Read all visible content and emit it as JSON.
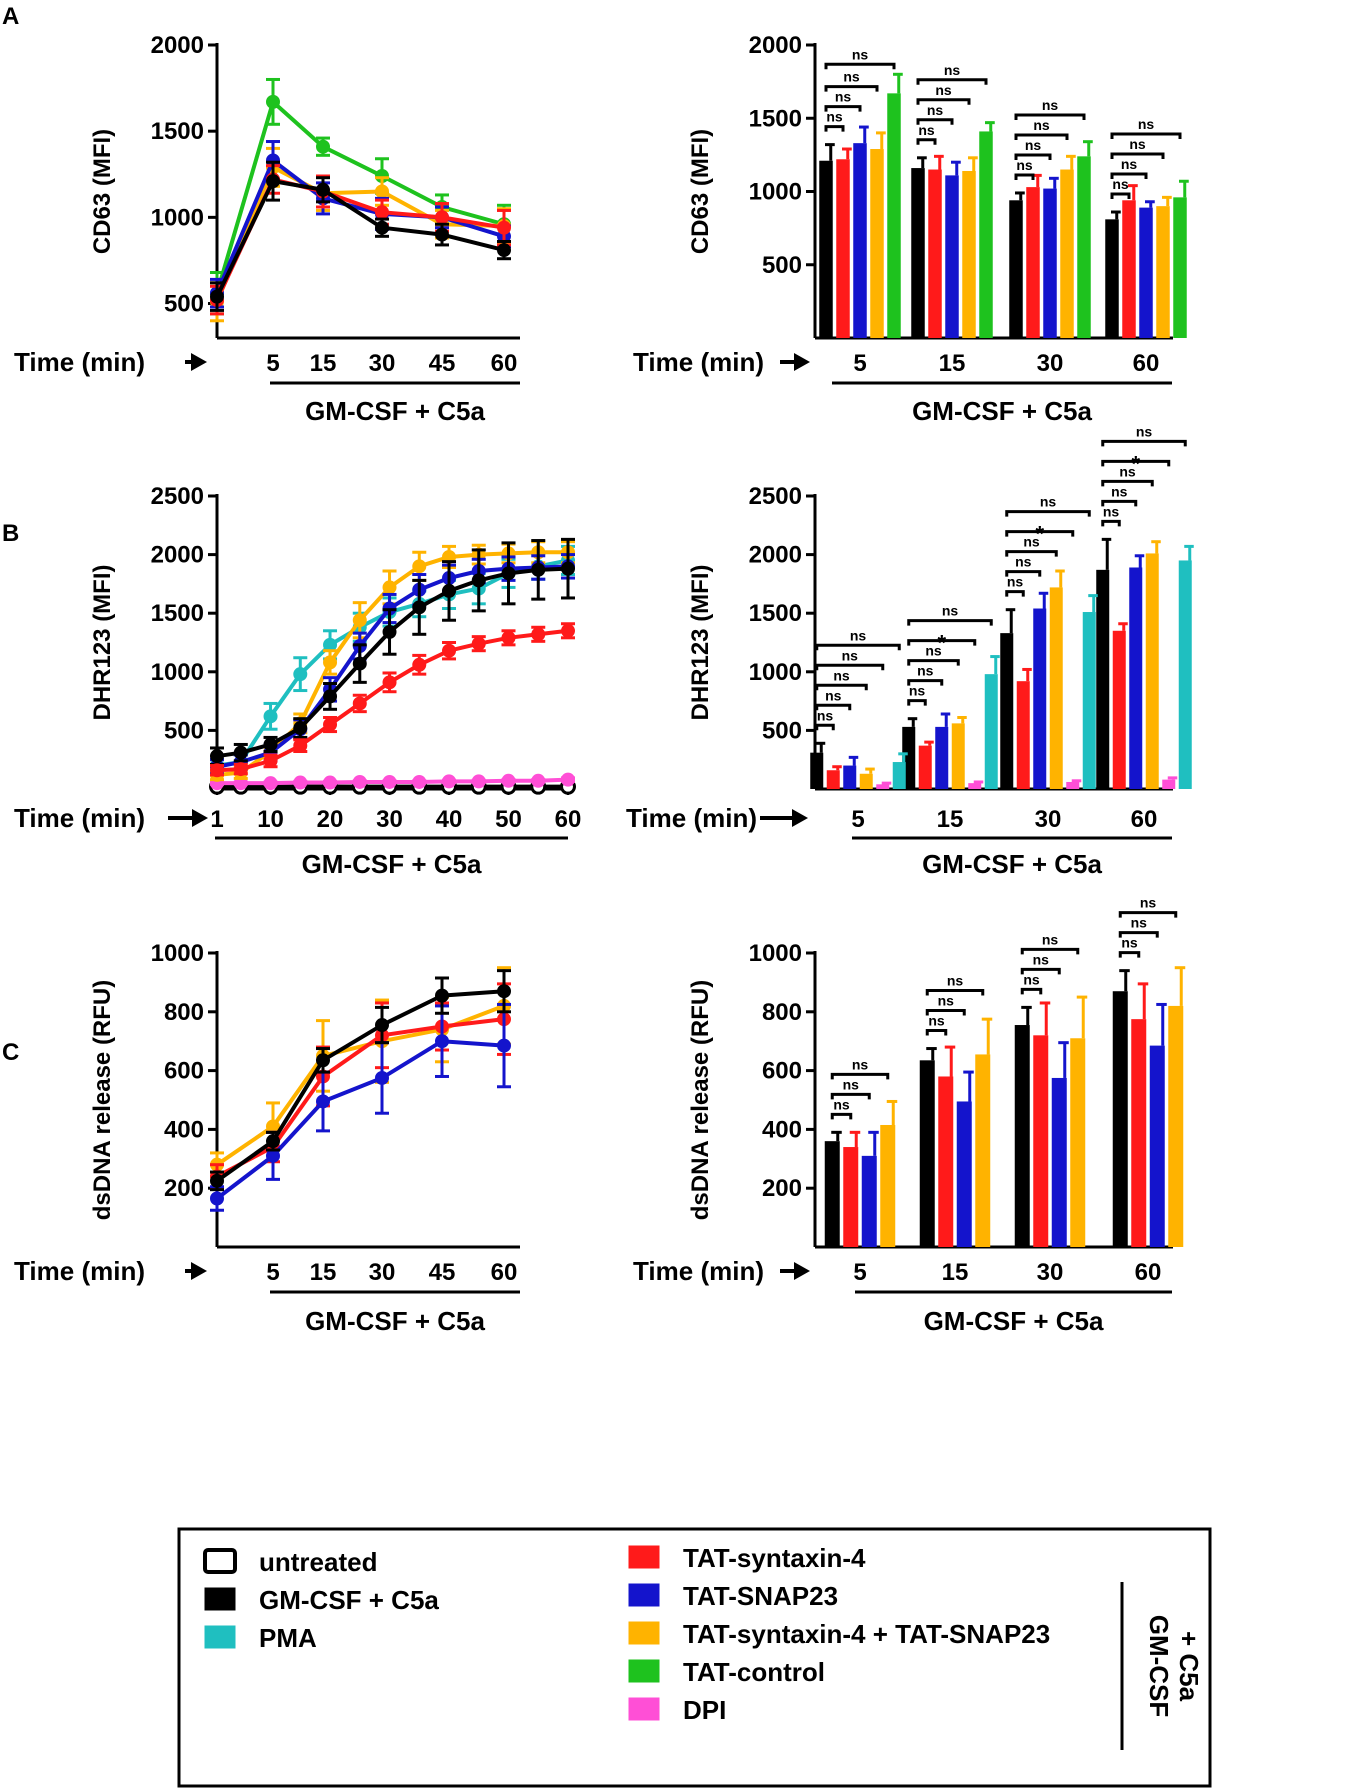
{
  "legend": {
    "items": [
      {
        "key": "untreated",
        "label": "untreated",
        "color": "#ffffff"
      },
      {
        "key": "gmcsf",
        "label": "GM-CSF + C5a",
        "color": "#000000"
      },
      {
        "key": "pma",
        "label": "PMA",
        "color": "#1fbfc0"
      },
      {
        "key": "stx4",
        "label": "TAT-syntaxin-4",
        "color": "#ff1a1a"
      },
      {
        "key": "snap23",
        "label": "TAT-SNAP23",
        "color": "#1414cc"
      },
      {
        "key": "both",
        "label": "TAT-syntaxin-4 + TAT-SNAP23",
        "color": "#ffb300"
      },
      {
        "key": "control",
        "label": "TAT-control",
        "color": "#1ec21e"
      },
      {
        "key": "dpi",
        "label": "DPI",
        "color": "#ff4fd6"
      }
    ],
    "group_label_line1": "GM-CSF",
    "group_label_line2": "+ C5a"
  },
  "chart_data": [
    {
      "id": "A-line",
      "panel": "A",
      "type": "line",
      "ylabel": "CD63 (MFI)",
      "ylim": [
        300,
        2000
      ],
      "yticks": [
        500,
        1000,
        1500,
        2000
      ],
      "time_label": "Time (min)",
      "treatment_label": "GM-CSF + C5a",
      "x_ticks": [
        "5",
        "15",
        "30",
        "45",
        "60"
      ],
      "series": [
        {
          "key": "control",
          "values": [
            560,
            1670,
            1410,
            1240,
            1060,
            960
          ],
          "err": [
            120,
            130,
            50,
            100,
            70,
            110
          ]
        },
        {
          "key": "both",
          "values": [
            510,
            1290,
            1140,
            1150,
            960,
            950
          ],
          "err": [
            110,
            110,
            100,
            80,
            80,
            100
          ]
        },
        {
          "key": "snap23",
          "values": [
            560,
            1330,
            1110,
            1020,
            1000,
            890
          ],
          "err": [
            80,
            110,
            90,
            90,
            60,
            60
          ]
        },
        {
          "key": "stx4",
          "values": [
            520,
            1220,
            1150,
            1030,
            1000,
            940
          ],
          "err": [
            80,
            80,
            90,
            70,
            80,
            100
          ]
        },
        {
          "key": "gmcsf",
          "values": [
            540,
            1210,
            1160,
            940,
            900,
            810
          ],
          "err": [
            80,
            110,
            70,
            50,
            60,
            50
          ]
        }
      ]
    },
    {
      "id": "A-bar",
      "panel": "A",
      "type": "bar",
      "ylabel": "CD63 (MFI)",
      "ylim": [
        0,
        2000
      ],
      "yticks": [
        500,
        1000,
        1500,
        2000
      ],
      "time_label": "Time (min)",
      "treatment_label": "GM-CSF + C5a",
      "categories": [
        "5",
        "15",
        "30",
        "60"
      ],
      "series": [
        {
          "key": "gmcsf",
          "values": [
            1210,
            1160,
            940,
            810
          ],
          "err": [
            110,
            70,
            50,
            50
          ]
        },
        {
          "key": "stx4",
          "values": [
            1220,
            1150,
            1030,
            940
          ],
          "err": [
            70,
            90,
            80,
            100
          ]
        },
        {
          "key": "snap23",
          "values": [
            1330,
            1110,
            1020,
            890
          ],
          "err": [
            110,
            90,
            70,
            40
          ]
        },
        {
          "key": "both",
          "values": [
            1290,
            1140,
            1150,
            900
          ],
          "err": [
            110,
            90,
            90,
            60
          ]
        },
        {
          "key": "control",
          "values": [
            1670,
            1410,
            1240,
            960
          ],
          "err": [
            130,
            60,
            100,
            110
          ]
        }
      ],
      "brackets": [
        {
          "cat": 0,
          "to": 1,
          "level": 0,
          "label": "ns"
        },
        {
          "cat": 0,
          "to": 2,
          "level": 1,
          "label": "ns"
        },
        {
          "cat": 0,
          "to": 3,
          "level": 2,
          "label": "ns"
        },
        {
          "cat": 0,
          "to": 4,
          "level": 3,
          "label": "ns"
        },
        {
          "cat": 1,
          "to": 1,
          "level": 0,
          "label": "ns"
        },
        {
          "cat": 1,
          "to": 2,
          "level": 1,
          "label": "ns"
        },
        {
          "cat": 1,
          "to": 3,
          "level": 2,
          "label": "ns"
        },
        {
          "cat": 1,
          "to": 4,
          "level": 3,
          "label": "ns"
        },
        {
          "cat": 2,
          "to": 1,
          "level": 0,
          "label": "ns"
        },
        {
          "cat": 2,
          "to": 2,
          "level": 1,
          "label": "ns"
        },
        {
          "cat": 2,
          "to": 3,
          "level": 2,
          "label": "ns"
        },
        {
          "cat": 2,
          "to": 4,
          "level": 3,
          "label": "ns"
        },
        {
          "cat": 3,
          "to": 1,
          "level": 0,
          "label": "ns"
        },
        {
          "cat": 3,
          "to": 2,
          "level": 1,
          "label": "ns"
        },
        {
          "cat": 3,
          "to": 3,
          "level": 2,
          "label": "ns"
        },
        {
          "cat": 3,
          "to": 4,
          "level": 3,
          "label": "ns"
        }
      ]
    },
    {
      "id": "B-line",
      "panel": "B",
      "type": "line",
      "ylabel": "DHR123 (MFI)",
      "ylim": [
        0,
        2500
      ],
      "yticks": [
        500,
        1000,
        1500,
        2000,
        2500
      ],
      "time_label": "Time (min)",
      "treatment_label": "GM-CSF + C5a",
      "x_ticks": [
        "1",
        "10",
        "20",
        "30",
        "40",
        "50",
        "60"
      ],
      "x": [
        1,
        5,
        10,
        15,
        20,
        25,
        30,
        35,
        40,
        45,
        50,
        55,
        60
      ],
      "series": [
        {
          "key": "untreated",
          "values": [
            20,
            20,
            20,
            20,
            20,
            20,
            20,
            20,
            20,
            20,
            20,
            20,
            20
          ],
          "err": [
            0,
            0,
            0,
            0,
            0,
            0,
            0,
            0,
            0,
            0,
            0,
            0,
            0
          ]
        },
        {
          "key": "dpi",
          "values": [
            50,
            50,
            50,
            55,
            55,
            60,
            60,
            60,
            65,
            65,
            70,
            70,
            80
          ],
          "err": [
            10,
            10,
            10,
            10,
            10,
            10,
            10,
            10,
            10,
            10,
            10,
            10,
            15
          ]
        },
        {
          "key": "pma",
          "values": [
            200,
            230,
            620,
            980,
            1230,
            1380,
            1510,
            1580,
            1660,
            1710,
            1840,
            1900,
            1950
          ],
          "err": [
            50,
            60,
            110,
            140,
            120,
            120,
            120,
            110,
            120,
            130,
            120,
            110,
            120
          ]
        },
        {
          "key": "both",
          "values": [
            120,
            140,
            320,
            560,
            1080,
            1440,
            1720,
            1900,
            1980,
            2000,
            2010,
            2020,
            2020
          ],
          "err": [
            40,
            50,
            60,
            80,
            100,
            150,
            140,
            120,
            90,
            80,
            80,
            90,
            90
          ]
        },
        {
          "key": "snap23",
          "values": [
            190,
            230,
            310,
            510,
            850,
            1220,
            1540,
            1700,
            1800,
            1860,
            1880,
            1890,
            1900
          ],
          "err": [
            60,
            60,
            70,
            80,
            100,
            110,
            120,
            130,
            110,
            100,
            100,
            100,
            100
          ]
        },
        {
          "key": "gmcsf",
          "values": [
            280,
            310,
            380,
            520,
            790,
            1070,
            1340,
            1550,
            1690,
            1780,
            1840,
            1870,
            1880
          ],
          "err": [
            70,
            70,
            60,
            80,
            110,
            160,
            190,
            230,
            250,
            260,
            260,
            250,
            250
          ]
        },
        {
          "key": "stx4",
          "values": [
            160,
            170,
            240,
            370,
            550,
            730,
            910,
            1060,
            1180,
            1240,
            1290,
            1320,
            1350
          ],
          "err": [
            40,
            40,
            50,
            50,
            60,
            70,
            80,
            80,
            70,
            60,
            60,
            60,
            60
          ]
        }
      ]
    },
    {
      "id": "B-bar",
      "panel": "B",
      "type": "bar",
      "ylabel": "DHR123 (MFI)",
      "ylim": [
        0,
        2500
      ],
      "yticks": [
        500,
        1000,
        1500,
        2000,
        2500
      ],
      "time_label": "Time (min)",
      "treatment_label": "GM-CSF + C5a",
      "categories": [
        "5",
        "15",
        "30",
        "60"
      ],
      "series": [
        {
          "key": "gmcsf",
          "values": [
            310,
            530,
            1330,
            1870
          ],
          "err": [
            80,
            70,
            200,
            260
          ]
        },
        {
          "key": "stx4",
          "values": [
            160,
            370,
            920,
            1350
          ],
          "err": [
            30,
            30,
            100,
            60
          ]
        },
        {
          "key": "snap23",
          "values": [
            200,
            530,
            1540,
            1890
          ],
          "err": [
            70,
            110,
            130,
            100
          ]
        },
        {
          "key": "both",
          "values": [
            130,
            560,
            1720,
            2010
          ],
          "err": [
            40,
            50,
            140,
            100
          ]
        },
        {
          "key": "dpi",
          "values": [
            40,
            50,
            60,
            80
          ],
          "err": [
            10,
            10,
            10,
            15
          ]
        },
        {
          "key": "pma",
          "values": [
            230,
            980,
            1510,
            1950
          ],
          "err": [
            70,
            150,
            140,
            120
          ]
        }
      ],
      "brackets": [
        {
          "cat": 0,
          "to": 1,
          "level": 0,
          "label": "ns"
        },
        {
          "cat": 0,
          "to": 2,
          "level": 1,
          "label": "ns"
        },
        {
          "cat": 0,
          "to": 3,
          "level": 2,
          "label": "ns"
        },
        {
          "cat": 0,
          "to": 4,
          "level": 3,
          "label": "ns"
        },
        {
          "cat": 0,
          "to": 5,
          "level": 4,
          "label": "ns"
        },
        {
          "cat": 1,
          "to": 1,
          "level": 0,
          "label": "ns"
        },
        {
          "cat": 1,
          "to": 2,
          "level": 1,
          "label": "ns"
        },
        {
          "cat": 1,
          "to": 3,
          "level": 2,
          "label": "ns"
        },
        {
          "cat": 1,
          "to": 4,
          "level": 3,
          "label": "*"
        },
        {
          "cat": 1,
          "to": 5,
          "level": 4,
          "label": "ns"
        },
        {
          "cat": 2,
          "to": 1,
          "level": 0,
          "label": "ns"
        },
        {
          "cat": 2,
          "to": 2,
          "level": 1,
          "label": "ns"
        },
        {
          "cat": 2,
          "to": 3,
          "level": 2,
          "label": "ns"
        },
        {
          "cat": 2,
          "to": 4,
          "level": 3,
          "label": "*"
        },
        {
          "cat": 2,
          "to": 5,
          "level": 4,
          "label": "ns"
        },
        {
          "cat": 3,
          "to": 1,
          "level": 0,
          "label": "ns"
        },
        {
          "cat": 3,
          "to": 2,
          "level": 1,
          "label": "ns"
        },
        {
          "cat": 3,
          "to": 3,
          "level": 2,
          "label": "ns"
        },
        {
          "cat": 3,
          "to": 4,
          "level": 3,
          "label": "*"
        },
        {
          "cat": 3,
          "to": 5,
          "level": 4,
          "label": "ns"
        }
      ]
    },
    {
      "id": "C-line",
      "panel": "C",
      "type": "line",
      "ylabel": "dsDNA release (RFU)",
      "ylim": [
        0,
        1000
      ],
      "yticks": [
        200,
        400,
        600,
        800,
        1000
      ],
      "time_label": "Time (min)",
      "treatment_label": "GM-CSF + C5a",
      "x_ticks": [
        "5",
        "15",
        "30",
        "45",
        "60"
      ],
      "series": [
        {
          "key": "both",
          "values": [
            280,
            410,
            650,
            700,
            740,
            820
          ],
          "err": [
            40,
            80,
            120,
            140,
            110,
            130
          ]
        },
        {
          "key": "stx4",
          "values": [
            240,
            340,
            580,
            720,
            750,
            775
          ],
          "err": [
            40,
            50,
            100,
            110,
            80,
            120
          ]
        },
        {
          "key": "snap23",
          "values": [
            165,
            310,
            495,
            575,
            700,
            685
          ],
          "err": [
            40,
            80,
            100,
            120,
            120,
            140
          ]
        },
        {
          "key": "gmcsf",
          "values": [
            225,
            360,
            635,
            755,
            855,
            870
          ],
          "err": [
            30,
            30,
            40,
            60,
            60,
            70
          ]
        }
      ]
    },
    {
      "id": "C-bar",
      "panel": "C",
      "type": "bar",
      "ylabel": "dsDNA release (RFU)",
      "ylim": [
        0,
        1000
      ],
      "yticks": [
        200,
        400,
        600,
        800,
        1000
      ],
      "time_label": "Time (min)",
      "treatment_label": "GM-CSF + C5a",
      "categories": [
        "5",
        "15",
        "30",
        "60"
      ],
      "series": [
        {
          "key": "gmcsf",
          "values": [
            360,
            635,
            755,
            870
          ],
          "err": [
            30,
            40,
            60,
            70
          ]
        },
        {
          "key": "stx4",
          "values": [
            340,
            580,
            720,
            775
          ],
          "err": [
            50,
            100,
            110,
            120
          ]
        },
        {
          "key": "snap23",
          "values": [
            310,
            495,
            575,
            685
          ],
          "err": [
            80,
            100,
            120,
            140
          ]
        },
        {
          "key": "both",
          "values": [
            415,
            655,
            710,
            820
          ],
          "err": [
            80,
            120,
            140,
            130
          ]
        }
      ],
      "brackets": [
        {
          "cat": 0,
          "to": 1,
          "level": 0,
          "label": "ns"
        },
        {
          "cat": 0,
          "to": 2,
          "level": 1,
          "label": "ns"
        },
        {
          "cat": 0,
          "to": 3,
          "level": 2,
          "label": "ns"
        },
        {
          "cat": 1,
          "to": 1,
          "level": 0,
          "label": "ns"
        },
        {
          "cat": 1,
          "to": 2,
          "level": 1,
          "label": "ns"
        },
        {
          "cat": 1,
          "to": 3,
          "level": 2,
          "label": "ns"
        },
        {
          "cat": 2,
          "to": 1,
          "level": 0,
          "label": "ns"
        },
        {
          "cat": 2,
          "to": 2,
          "level": 1,
          "label": "ns"
        },
        {
          "cat": 2,
          "to": 3,
          "level": 2,
          "label": "ns"
        },
        {
          "cat": 3,
          "to": 1,
          "level": 0,
          "label": "ns"
        },
        {
          "cat": 3,
          "to": 2,
          "level": 1,
          "label": "ns"
        },
        {
          "cat": 3,
          "to": 3,
          "level": 2,
          "label": "ns"
        }
      ]
    }
  ]
}
